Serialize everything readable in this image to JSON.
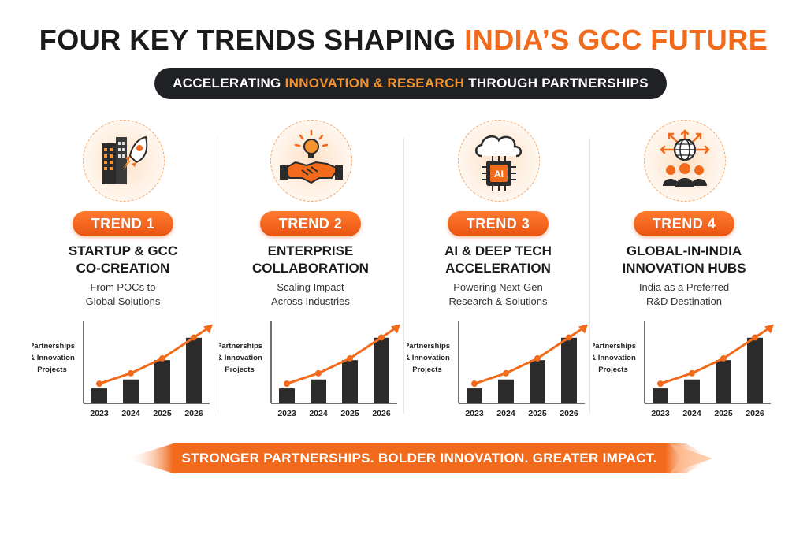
{
  "header": {
    "title_main": "FOUR KEY TRENDS SHAPING ",
    "title_accent": "INDIA’S GCC FUTURE",
    "subtitle_pre": "ACCELERATING ",
    "subtitle_accent": "INNOVATION & RESEARCH",
    "subtitle_post": " THROUGH PARTNERSHIPS"
  },
  "colors": {
    "accent": "#f26a1b",
    "dark": "#1f2124",
    "bar": "#2b2b2b"
  },
  "trends": [
    {
      "icon": "startup-rocket-icon",
      "label": "TREND 1",
      "heading": [
        "STARTUP & GCC",
        "CO-CREATION"
      ],
      "desc": [
        "From POCs to",
        "Global Solutions"
      ]
    },
    {
      "icon": "handshake-idea-icon",
      "label": "TREND 2",
      "heading": [
        "ENTERPRISE",
        "COLLABORATION"
      ],
      "desc": [
        "Scaling Impact",
        "Across Industries"
      ]
    },
    {
      "icon": "ai-chip-cloud-icon",
      "label": "TREND 3",
      "heading": [
        "AI & DEEP TECH",
        "ACCELERATION"
      ],
      "desc": [
        "Powering Next-Gen",
        "Research & Solutions"
      ]
    },
    {
      "icon": "global-hub-icon",
      "label": "TREND 4",
      "heading": [
        "GLOBAL-IN-INDIA",
        "INNOVATION HUBS"
      ],
      "desc": [
        "India as a Preferred",
        "R&D Destination"
      ]
    }
  ],
  "chart_data": {
    "type": "bar",
    "ylabel_lines": [
      "Partnerships",
      "& Innovation",
      "Projects"
    ],
    "categories": [
      "2023",
      "2024",
      "2025",
      "2026"
    ],
    "values": [
      1,
      1.6,
      2.9,
      4.4
    ],
    "trend_line": [
      1,
      1.7,
      2.7,
      4.1
    ],
    "ylim": [
      0,
      5.5
    ],
    "grid": false
  },
  "footer": {
    "banner": "STRONGER PARTNERSHIPS. BOLDER INNOVATION. GREATER IMPACT."
  }
}
